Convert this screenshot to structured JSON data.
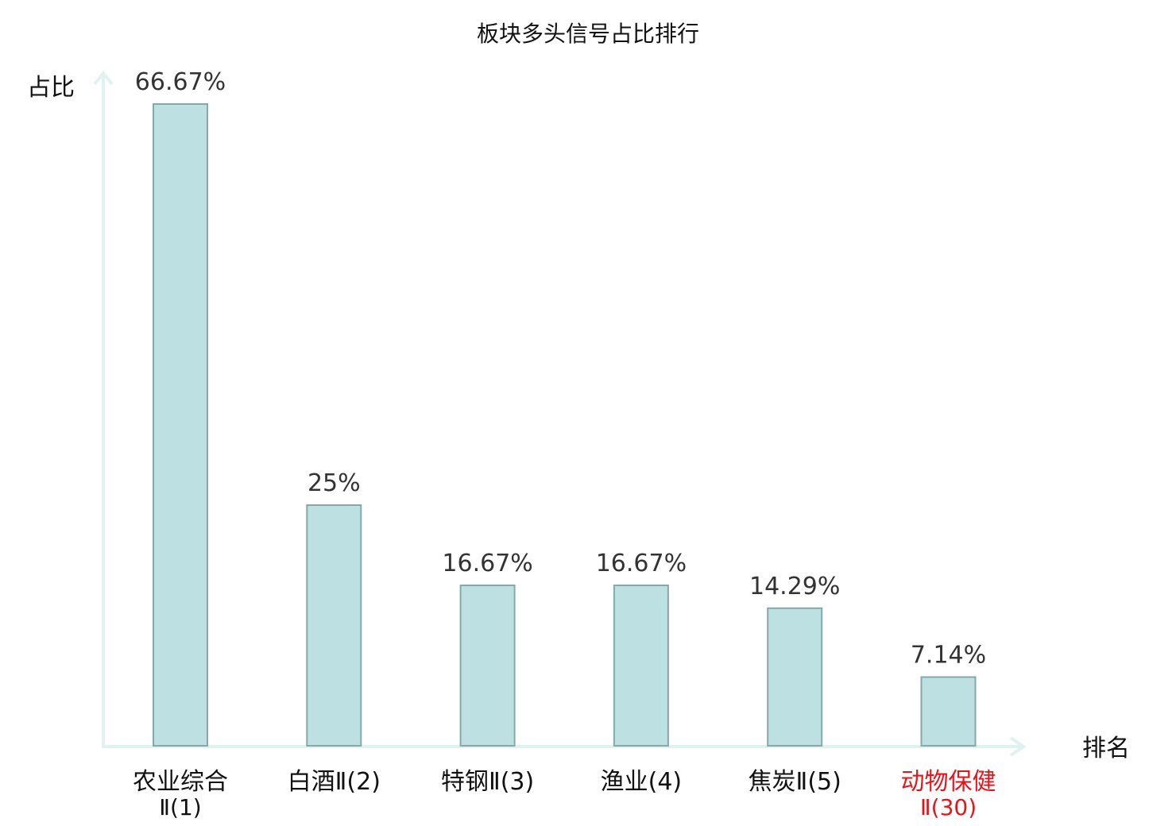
{
  "chart_data": {
    "type": "bar",
    "title": "板块多头信号占比排行",
    "ylabel": "占比",
    "xlabel": "排名",
    "categories": [
      {
        "main": "农业综合",
        "sub": "Ⅱ(1)",
        "highlight": false
      },
      {
        "main": "白酒Ⅱ(2)",
        "sub": "",
        "highlight": false
      },
      {
        "main": "特钢Ⅱ(3)",
        "sub": "",
        "highlight": false
      },
      {
        "main": "渔业(4)",
        "sub": "",
        "highlight": false
      },
      {
        "main": "焦炭Ⅱ(5)",
        "sub": "",
        "highlight": false
      },
      {
        "main": "动物保健",
        "sub": "Ⅱ(30)",
        "highlight": true
      }
    ],
    "values": [
      66.67,
      25,
      16.67,
      16.67,
      14.29,
      7.14
    ],
    "value_labels": [
      "66.67%",
      "25%",
      "16.67%",
      "16.67%",
      "14.29%",
      "7.14%"
    ],
    "ylim": [
      0,
      66.67
    ],
    "grid": false,
    "colors": {
      "bar_fill": "#bde0e2",
      "bar_stroke": "#86a8a9",
      "axis": "#dff2ef",
      "label_text": "#111111",
      "value_text": "#333333",
      "highlight": "#e8141b"
    }
  }
}
